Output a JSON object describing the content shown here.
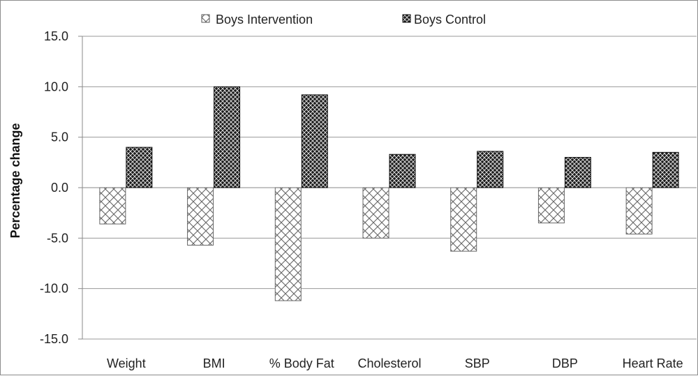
{
  "chart_data": {
    "type": "bar",
    "title": "",
    "xlabel": "",
    "ylabel": "Percentage change",
    "ylim": [
      -15,
      15
    ],
    "ytick_step": 5,
    "ytick_labels": [
      "15.0",
      "10.0",
      "5.0",
      "0.0",
      "-5.0",
      "-10.0",
      "-15.0"
    ],
    "grid": true,
    "legend_position": "top-center",
    "categories": [
      "Weight",
      "BMI",
      "% Body Fat",
      "Cholesterol",
      "SBP",
      "DBP",
      "Heart Rate"
    ],
    "series": [
      {
        "name": "Boys Intervention",
        "pattern": "light-crosshatch",
        "fill_color": "#ffffff",
        "line_color": "#555555",
        "values": [
          -3.6,
          -5.7,
          -11.2,
          -5.0,
          -6.3,
          -3.5,
          -4.6
        ]
      },
      {
        "name": "Boys Control",
        "pattern": "dark-crosshatch",
        "fill_color": "#1a1a1a",
        "line_color": "#f2f2f2",
        "values": [
          4.0,
          10.0,
          9.2,
          3.3,
          3.6,
          3.0,
          3.5
        ]
      }
    ]
  }
}
